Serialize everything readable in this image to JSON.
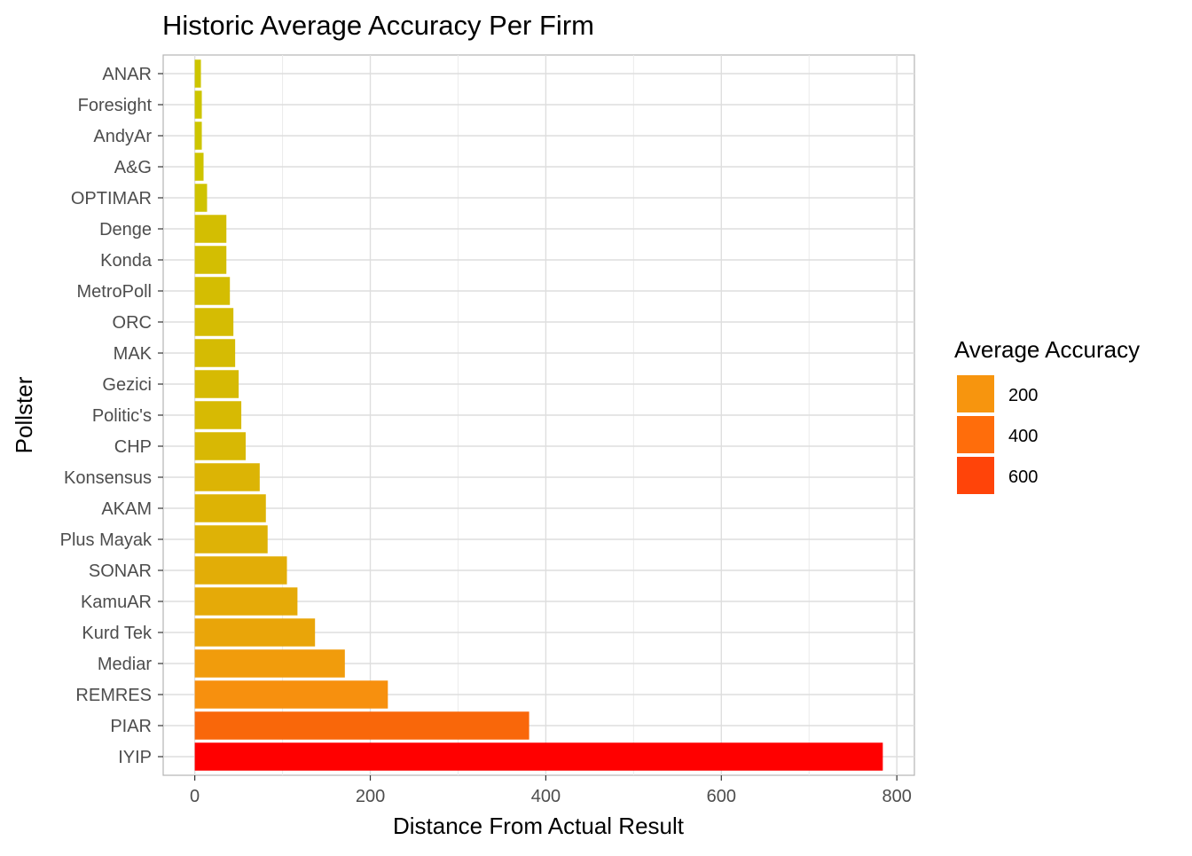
{
  "chart_data": {
    "type": "bar",
    "orientation": "horizontal",
    "title": "Historic Average Accuracy Per Firm",
    "xlabel": "Distance From Actual Result",
    "ylabel": "Pollster",
    "xlim": [
      -36,
      820
    ],
    "xticks": [
      0,
      200,
      400,
      600,
      800
    ],
    "grid": true,
    "categories": [
      "ANAR",
      "Foresight",
      "AndyAr",
      "A&G",
      "OPTIMAR",
      "Denge",
      "Konda",
      "MetroPoll",
      "ORC",
      "MAK",
      "Gezici",
      "Politic's",
      "CHP",
      "Konsensus",
      "AKAM",
      "Plus Mayak",
      "SONAR",
      "KamuAR",
      "Kurd Tek",
      "Mediar",
      "REMRES",
      "PIAR",
      "IYIP"
    ],
    "values": [
      7,
      8,
      8,
      10,
      14,
      36,
      36,
      40,
      44,
      46,
      50,
      53,
      58,
      74,
      81,
      83,
      105,
      117,
      137,
      171,
      220,
      381,
      784
    ],
    "legend": {
      "title": "Average Accuracy",
      "position": "right",
      "entries": [
        {
          "label": "200",
          "color": "#F7950E"
        },
        {
          "label": "400",
          "color": "#FF6D0B"
        },
        {
          "label": "600",
          "color": "#FF4409"
        }
      ]
    },
    "color_scale": {
      "low_value": 7,
      "low_color": "#CDC500",
      "mid_value": 200,
      "mid_color": "#F7950E",
      "high_value": 784,
      "high_color": "#FF0000"
    }
  }
}
